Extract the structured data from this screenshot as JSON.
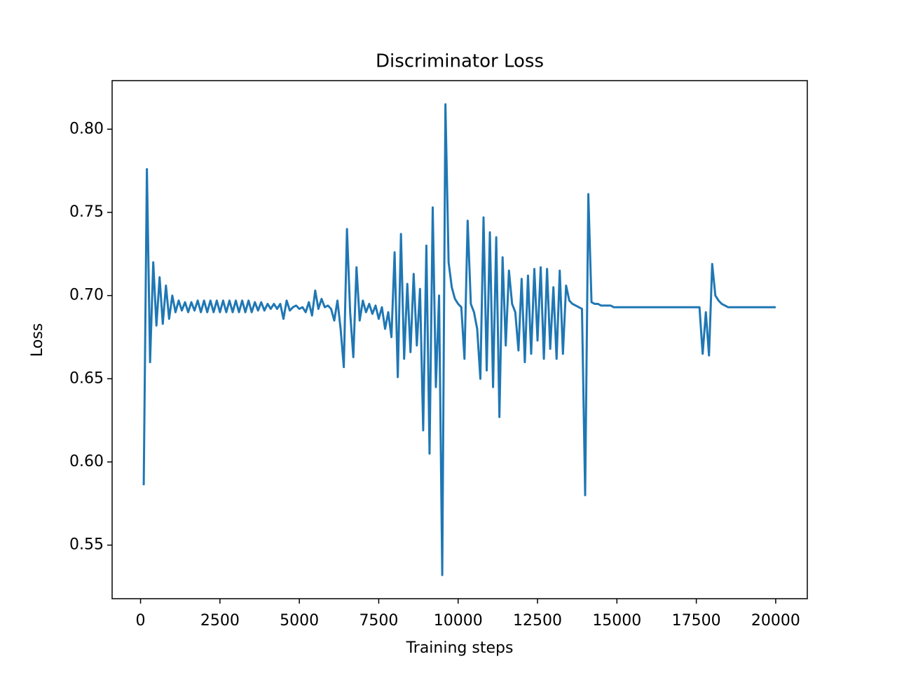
{
  "chart_data": {
    "type": "line",
    "title": "Discriminator Loss",
    "x_label": "Training steps",
    "y_label": "Loss",
    "xlim": [
      -895,
      20995
    ],
    "ylim": [
      0.5178,
      0.8292
    ],
    "xticks": [
      0,
      2500,
      5000,
      7500,
      10000,
      12500,
      15000,
      17500,
      20000
    ],
    "yticks": [
      0.55,
      {
        "value": 0.6,
        "label": "0.60"
      },
      0.65,
      {
        "value": 0.7,
        "label": "0.70"
      },
      0.75,
      {
        "value": 0.8,
        "label": "0.80"
      }
    ],
    "grid": false,
    "x": [
      100,
      200,
      300,
      400,
      500,
      600,
      700,
      800,
      900,
      1000,
      1100,
      1200,
      1300,
      1400,
      1500,
      1600,
      1700,
      1800,
      1900,
      2000,
      2100,
      2200,
      2300,
      2400,
      2500,
      2600,
      2700,
      2800,
      2900,
      3000,
      3100,
      3200,
      3300,
      3400,
      3500,
      3600,
      3700,
      3800,
      3900,
      4000,
      4100,
      4200,
      4300,
      4400,
      4500,
      4600,
      4700,
      4800,
      4900,
      5000,
      5100,
      5200,
      5300,
      5400,
      5500,
      5600,
      5700,
      5800,
      5900,
      6000,
      6100,
      6200,
      6300,
      6400,
      6500,
      6600,
      6700,
      6800,
      6900,
      7000,
      7100,
      7200,
      7300,
      7400,
      7500,
      7600,
      7700,
      7800,
      7900,
      8000,
      8100,
      8200,
      8300,
      8400,
      8500,
      8600,
      8700,
      8800,
      8900,
      9000,
      9100,
      9200,
      9300,
      9400,
      9500,
      9600,
      9700,
      9800,
      9900,
      10000,
      10100,
      10200,
      10300,
      10400,
      10500,
      10600,
      10700,
      10800,
      10900,
      11000,
      11100,
      11200,
      11300,
      11400,
      11500,
      11600,
      11700,
      11800,
      11900,
      12000,
      12100,
      12200,
      12300,
      12400,
      12500,
      12600,
      12700,
      12800,
      12900,
      13000,
      13100,
      13200,
      13300,
      13400,
      13500,
      13600,
      13700,
      13800,
      13900,
      14000,
      14100,
      14200,
      14300,
      14400,
      14500,
      14600,
      14700,
      14800,
      14900,
      15000,
      15100,
      15200,
      15300,
      15400,
      15500,
      15600,
      15700,
      15800,
      15900,
      16000,
      16100,
      16200,
      16300,
      16400,
      16500,
      16600,
      16700,
      16800,
      16900,
      17000,
      17100,
      17200,
      17300,
      17400,
      17500,
      17600,
      17700,
      17800,
      17900,
      18000,
      18100,
      18200,
      18300,
      18400,
      18500,
      18600,
      18700,
      18800,
      18900,
      19000,
      19100,
      19200,
      19300,
      19400,
      19500,
      19600,
      19700,
      19800,
      19900,
      20000
    ],
    "series": [
      {
        "color": "#1f77b4",
        "values": [
          0.586,
          0.776,
          0.66,
          0.72,
          0.682,
          0.711,
          0.683,
          0.706,
          0.686,
          0.7,
          0.69,
          0.697,
          0.691,
          0.696,
          0.69,
          0.696,
          0.691,
          0.697,
          0.69,
          0.697,
          0.69,
          0.697,
          0.69,
          0.697,
          0.69,
          0.697,
          0.69,
          0.697,
          0.69,
          0.697,
          0.69,
          0.697,
          0.69,
          0.697,
          0.69,
          0.696,
          0.691,
          0.696,
          0.691,
          0.695,
          0.692,
          0.695,
          0.692,
          0.695,
          0.686,
          0.697,
          0.691,
          0.693,
          0.694,
          0.692,
          0.693,
          0.69,
          0.696,
          0.688,
          0.703,
          0.692,
          0.698,
          0.693,
          0.694,
          0.692,
          0.685,
          0.697,
          0.68,
          0.657,
          0.74,
          0.69,
          0.663,
          0.717,
          0.685,
          0.697,
          0.69,
          0.695,
          0.689,
          0.694,
          0.686,
          0.693,
          0.68,
          0.69,
          0.675,
          0.726,
          0.651,
          0.737,
          0.662,
          0.707,
          0.666,
          0.713,
          0.67,
          0.704,
          0.619,
          0.73,
          0.605,
          0.753,
          0.645,
          0.7,
          0.532,
          0.815,
          0.72,
          0.705,
          0.698,
          0.695,
          0.693,
          0.662,
          0.745,
          0.695,
          0.69,
          0.68,
          0.65,
          0.747,
          0.655,
          0.738,
          0.645,
          0.735,
          0.627,
          0.723,
          0.67,
          0.715,
          0.695,
          0.69,
          0.667,
          0.71,
          0.66,
          0.712,
          0.665,
          0.716,
          0.673,
          0.717,
          0.662,
          0.716,
          0.668,
          0.705,
          0.662,
          0.715,
          0.665,
          0.706,
          0.697,
          0.695,
          0.694,
          0.693,
          0.692,
          0.58,
          0.761,
          0.696,
          0.695,
          0.695,
          0.694,
          0.694,
          0.694,
          0.694,
          0.693,
          0.693,
          0.693,
          0.693,
          0.693,
          0.693,
          0.693,
          0.693,
          0.693,
          0.693,
          0.693,
          0.693,
          0.693,
          0.693,
          0.693,
          0.693,
          0.693,
          0.693,
          0.693,
          0.693,
          0.693,
          0.693,
          0.693,
          0.693,
          0.693,
          0.693,
          0.693,
          0.693,
          0.665,
          0.69,
          0.664,
          0.719,
          0.7,
          0.697,
          0.695,
          0.694,
          0.693,
          0.693,
          0.693,
          0.693,
          0.693,
          0.693,
          0.693,
          0.693,
          0.693,
          0.693,
          0.693,
          0.693,
          0.693,
          0.693,
          0.693,
          0.693
        ]
      }
    ]
  }
}
